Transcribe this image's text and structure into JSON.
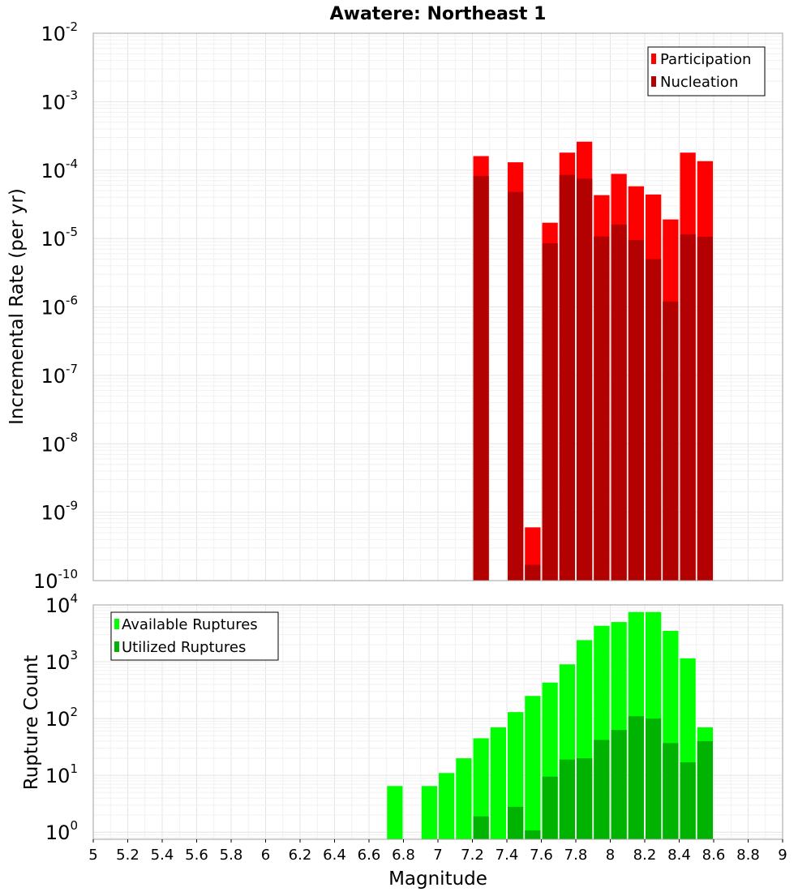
{
  "chart_data": [
    {
      "type": "bar",
      "title": "Awatere: Northeast 1",
      "xlabel": "",
      "ylabel": "Incremental Rate (per yr)",
      "y_scale": "log",
      "ylim": [
        1e-10,
        0.01
      ],
      "xlim": [
        5,
        9
      ],
      "bin_width": 0.1,
      "grid": true,
      "legend_position": "top-right",
      "y_tick_bases": [
        "10",
        "10",
        "10",
        "10",
        "10",
        "10",
        "10",
        "10",
        "10"
      ],
      "y_tick_exponents": [
        "-10",
        "-9",
        "-8",
        "-7",
        "-6",
        "-5",
        "-4",
        "-3",
        "-2"
      ],
      "series": [
        {
          "name": "Participation",
          "color": "#ff0000",
          "x": [
            7.25,
            7.45,
            7.55,
            7.65,
            7.75,
            7.85,
            7.95,
            8.05,
            8.15,
            8.25,
            8.35,
            8.45,
            8.55
          ],
          "values": [
            0.00016,
            0.00013,
            6e-10,
            1.7e-05,
            0.00018,
            0.00026,
            4.3e-05,
            8.8e-05,
            5.8e-05,
            4.4e-05,
            1.9e-05,
            0.00018,
            0.000135
          ]
        },
        {
          "name": "Nucleation",
          "color": "#b30000",
          "x": [
            7.25,
            7.45,
            7.55,
            7.65,
            7.75,
            7.85,
            7.95,
            8.05,
            8.15,
            8.25,
            8.35,
            8.45,
            8.55
          ],
          "values": [
            8.2e-05,
            4.8e-05,
            1.7e-10,
            8.5e-06,
            8.5e-05,
            7.5e-05,
            1.07e-05,
            1.6e-05,
            9.5e-06,
            5e-06,
            1.2e-06,
            1.15e-05,
            1.06e-05
          ]
        }
      ]
    },
    {
      "type": "bar",
      "title": "",
      "xlabel": "Magnitude",
      "ylabel": "Rupture Count",
      "y_scale": "log",
      "ylim": [
        0.75,
        10000
      ],
      "xlim": [
        5,
        9
      ],
      "bin_width": 0.1,
      "grid": true,
      "legend_position": "top-left",
      "x_ticks": [
        "5",
        "5.2",
        "5.4",
        "5.6",
        "5.8",
        "6",
        "6.2",
        "6.4",
        "6.6",
        "6.8",
        "7",
        "7.2",
        "7.4",
        "7.6",
        "7.8",
        "8",
        "8.2",
        "8.4",
        "8.6",
        "8.8",
        "9"
      ],
      "y_tick_bases": [
        "10",
        "10",
        "10",
        "10",
        "10"
      ],
      "y_tick_exponents": [
        "0",
        "1",
        "2",
        "3",
        "4"
      ],
      "series": [
        {
          "name": "Available Ruptures",
          "color": "#00ff00",
          "x": [
            6.75,
            6.95,
            7.05,
            7.15,
            7.25,
            7.35,
            7.45,
            7.55,
            7.65,
            7.75,
            7.85,
            7.95,
            8.05,
            8.15,
            8.25,
            8.35,
            8.45,
            8.55
          ],
          "values": [
            6.5,
            6.5,
            11,
            20,
            45,
            70,
            130,
            250,
            430,
            900,
            2400,
            4300,
            5000,
            7500,
            7500,
            3500,
            1150,
            70
          ]
        },
        {
          "name": "Utilized Ruptures",
          "color": "#00b300",
          "x": [
            7.25,
            7.45,
            7.55,
            7.65,
            7.75,
            7.85,
            7.95,
            8.05,
            8.15,
            8.25,
            8.35,
            8.45,
            8.55
          ],
          "values": [
            1.9,
            2.8,
            1.08,
            9.5,
            19,
            20,
            42,
            63,
            110,
            100,
            37,
            17,
            40
          ]
        }
      ]
    }
  ],
  "colors": {
    "participation": "#ff0000",
    "nucleation": "#b30000",
    "available": "#00ff00",
    "utilized": "#00b300",
    "grid_major": "#e4e4e4",
    "grid_minor": "#f1f1f1",
    "frame": "#a0a0a0"
  }
}
